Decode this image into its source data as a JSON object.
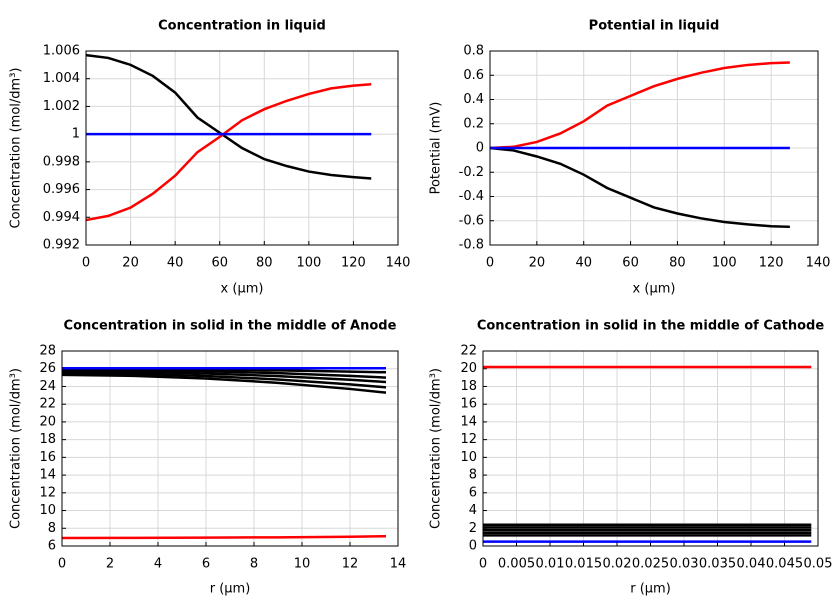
{
  "chart_data": [
    {
      "type": "line",
      "title": "Concentration in liquid",
      "xlabel": "x (µm)",
      "ylabel": "Concentration (mol/dm³)",
      "x": [
        0,
        10,
        20,
        30,
        40,
        50,
        60,
        70,
        80,
        90,
        100,
        110,
        120,
        128
      ],
      "series": [
        {
          "color": "#000000",
          "values": [
            1.0057,
            1.0055,
            1.005,
            1.0042,
            1.003,
            1.0012,
            1.0001,
            0.999,
            0.9982,
            0.9977,
            0.9973,
            0.99705,
            0.9969,
            0.9968
          ]
        },
        {
          "color": "#ff0000",
          "values": [
            0.9938,
            0.9941,
            0.9947,
            0.9957,
            0.997,
            0.9987,
            0.9998,
            1.001,
            1.0018,
            1.0024,
            1.0029,
            1.0033,
            1.0035,
            1.0036
          ]
        },
        {
          "color": "#0000ff",
          "values": [
            1,
            1,
            1,
            1,
            1,
            1,
            1,
            1,
            1,
            1,
            1,
            1,
            1,
            1
          ]
        }
      ],
      "xlim": [
        0,
        140
      ],
      "xticks": [
        0,
        20,
        40,
        60,
        80,
        100,
        120,
        140
      ],
      "ylim": [
        0.992,
        1.006
      ],
      "yticks": [
        0.992,
        0.994,
        0.996,
        0.998,
        1,
        1.002,
        1.004,
        1.006
      ],
      "grid": true
    },
    {
      "type": "line",
      "title": "Potential in liquid",
      "xlabel": "x (µm)",
      "ylabel": "Potential (mV)",
      "x": [
        0,
        10,
        20,
        30,
        40,
        50,
        60,
        70,
        80,
        90,
        100,
        110,
        120,
        128
      ],
      "series": [
        {
          "color": "#ff0000",
          "values": [
            0,
            0.01,
            0.05,
            0.12,
            0.22,
            0.35,
            0.43,
            0.51,
            0.57,
            0.62,
            0.66,
            0.685,
            0.7,
            0.705
          ]
        },
        {
          "color": "#000000",
          "values": [
            0,
            -0.02,
            -0.07,
            -0.13,
            -0.22,
            -0.33,
            -0.41,
            -0.49,
            -0.54,
            -0.58,
            -0.61,
            -0.63,
            -0.645,
            -0.65
          ]
        },
        {
          "color": "#0000ff",
          "values": [
            0,
            0,
            0,
            0,
            0,
            0,
            0,
            0,
            0,
            0,
            0,
            0,
            0,
            0
          ]
        }
      ],
      "xlim": [
        0,
        140
      ],
      "xticks": [
        0,
        20,
        40,
        60,
        80,
        100,
        120,
        140
      ],
      "ylim": [
        -0.8,
        0.8
      ],
      "yticks": [
        -0.8,
        -0.6,
        -0.4,
        -0.2,
        0,
        0.2,
        0.4,
        0.6,
        0.8
      ],
      "grid": true
    },
    {
      "type": "line",
      "title": "Concentration in solid in the middle of Anode",
      "xlabel": "r (µm)",
      "ylabel": "Concentration (mol/dm³)",
      "x": [
        0,
        3,
        6,
        9,
        12,
        13.5
      ],
      "series": [
        {
          "color": "#000000",
          "values": [
            26.0,
            25.98,
            25.92,
            25.82,
            25.68,
            25.6
          ]
        },
        {
          "color": "#000000",
          "values": [
            25.9,
            25.86,
            25.72,
            25.5,
            25.19,
            25.0
          ]
        },
        {
          "color": "#000000",
          "values": [
            25.7,
            25.64,
            25.46,
            25.17,
            24.75,
            24.5
          ]
        },
        {
          "color": "#000000",
          "values": [
            25.5,
            25.42,
            25.18,
            24.79,
            24.24,
            23.9
          ]
        },
        {
          "color": "#000000",
          "values": [
            25.3,
            25.2,
            24.9,
            24.41,
            23.72,
            23.3
          ]
        },
        {
          "color": "#0000ff",
          "values": [
            26.05,
            26.05,
            26.05,
            26.05,
            26.05,
            26.05
          ]
        },
        {
          "color": "#ff0000",
          "values": [
            6.9,
            6.92,
            6.95,
            6.98,
            7.05,
            7.1
          ]
        }
      ],
      "xlim": [
        0,
        14
      ],
      "xticks": [
        0,
        2,
        4,
        6,
        8,
        10,
        12,
        14
      ],
      "ylim": [
        6,
        28
      ],
      "yticks": [
        6,
        8,
        10,
        12,
        14,
        16,
        18,
        20,
        22,
        24,
        26,
        28
      ],
      "grid": true
    },
    {
      "type": "line",
      "title": "Concentration in solid in the middle of Cathode",
      "xlabel": "r (µm)",
      "ylabel": "Concentration (mol/dm³)",
      "x": [
        0,
        0.049
      ],
      "series": [
        {
          "color": "#ff0000",
          "values": [
            20.2,
            20.2
          ]
        },
        {
          "color": "#000000",
          "values": [
            2.4,
            2.4
          ]
        },
        {
          "color": "#000000",
          "values": [
            2.1,
            2.1
          ]
        },
        {
          "color": "#000000",
          "values": [
            1.8,
            1.8
          ]
        },
        {
          "color": "#000000",
          "values": [
            1.5,
            1.5
          ]
        },
        {
          "color": "#000000",
          "values": [
            1.2,
            1.2
          ]
        },
        {
          "color": "#0000ff",
          "values": [
            0.5,
            0.5
          ]
        }
      ],
      "xlim": [
        0,
        0.05
      ],
      "xticks": [
        0,
        0.005,
        0.01,
        0.015,
        0.02,
        0.025,
        0.03,
        0.035,
        0.04,
        0.045,
        0.05
      ],
      "ylim": [
        0,
        22
      ],
      "yticks": [
        0,
        2,
        4,
        6,
        8,
        10,
        12,
        14,
        16,
        18,
        20,
        22
      ],
      "grid": true
    }
  ]
}
